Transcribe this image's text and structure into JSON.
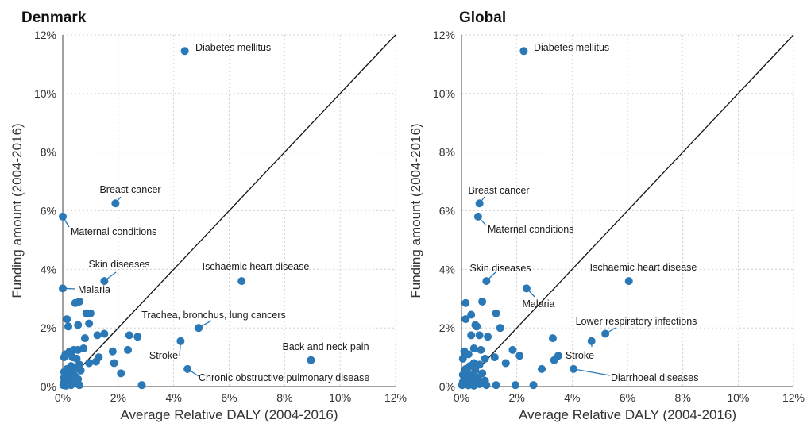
{
  "chart_data": [
    {
      "type": "scatter",
      "title": "Denmark",
      "xlabel": "Average Relative DALY (2004-2016)",
      "ylabel": "Funding amount (2004-2016)",
      "xlim": [
        0,
        12
      ],
      "ylim": [
        0,
        12
      ],
      "x_ticks": [
        "0%",
        "2%",
        "4%",
        "6%",
        "8%",
        "10%",
        "12%"
      ],
      "y_ticks": [
        "0%",
        "2%",
        "4%",
        "6%",
        "8%",
        "10%",
        "12%"
      ],
      "grid": true,
      "reference_line": "y = x",
      "point_color": "#2a78b5",
      "labeled_points": [
        {
          "label": "Diabetes mellitus",
          "x": 4.4,
          "y": 11.45
        },
        {
          "label": "Breast cancer",
          "x": 1.9,
          "y": 6.25
        },
        {
          "label": "Maternal conditions",
          "x": 0.0,
          "y": 5.8
        },
        {
          "label": "Skin diseases",
          "x": 1.5,
          "y": 3.6
        },
        {
          "label": "Malaria",
          "x": 0.0,
          "y": 3.35
        },
        {
          "label": "Ischaemic heart disease",
          "x": 6.45,
          "y": 3.6
        },
        {
          "label": "Trachea, bronchus, lung cancers",
          "x": 4.9,
          "y": 2.0
        },
        {
          "label": "Stroke",
          "x": 4.25,
          "y": 1.55
        },
        {
          "label": "Chronic obstructive pulmonary disease",
          "x": 4.5,
          "y": 0.6
        },
        {
          "label": "Back and neck pain",
          "x": 8.95,
          "y": 0.9
        }
      ],
      "points": [
        {
          "x": 0.45,
          "y": 2.85
        },
        {
          "x": 0.6,
          "y": 2.9
        },
        {
          "x": 0.15,
          "y": 2.3
        },
        {
          "x": 0.85,
          "y": 2.5
        },
        {
          "x": 1.0,
          "y": 2.5
        },
        {
          "x": 0.2,
          "y": 2.05
        },
        {
          "x": 0.55,
          "y": 2.1
        },
        {
          "x": 0.95,
          "y": 2.15
        },
        {
          "x": 1.5,
          "y": 1.8
        },
        {
          "x": 1.25,
          "y": 1.75
        },
        {
          "x": 2.4,
          "y": 1.75
        },
        {
          "x": 2.7,
          "y": 1.7
        },
        {
          "x": 0.8,
          "y": 1.65
        },
        {
          "x": 0.75,
          "y": 1.3
        },
        {
          "x": 0.4,
          "y": 1.25
        },
        {
          "x": 0.55,
          "y": 1.25
        },
        {
          "x": 0.25,
          "y": 1.2
        },
        {
          "x": 1.8,
          "y": 1.2
        },
        {
          "x": 2.35,
          "y": 1.25
        },
        {
          "x": 0.1,
          "y": 1.1
        },
        {
          "x": 0.05,
          "y": 1.0
        },
        {
          "x": 0.35,
          "y": 1.0
        },
        {
          "x": 0.5,
          "y": 0.95
        },
        {
          "x": 1.3,
          "y": 1.0
        },
        {
          "x": 1.2,
          "y": 0.85
        },
        {
          "x": 0.95,
          "y": 0.8
        },
        {
          "x": 1.85,
          "y": 0.8
        },
        {
          "x": 0.6,
          "y": 0.75
        },
        {
          "x": 0.3,
          "y": 0.7
        },
        {
          "x": 0.15,
          "y": 0.6
        },
        {
          "x": 0.45,
          "y": 0.6
        },
        {
          "x": 0.25,
          "y": 0.55
        },
        {
          "x": 0.65,
          "y": 0.55
        },
        {
          "x": 0.05,
          "y": 0.5
        },
        {
          "x": 0.35,
          "y": 0.45
        },
        {
          "x": 2.1,
          "y": 0.45
        },
        {
          "x": 0.1,
          "y": 0.4
        },
        {
          "x": 0.2,
          "y": 0.35
        },
        {
          "x": 0.45,
          "y": 0.35
        },
        {
          "x": 0.05,
          "y": 0.3
        },
        {
          "x": 0.3,
          "y": 0.3
        },
        {
          "x": 0.15,
          "y": 0.25
        },
        {
          "x": 0.55,
          "y": 0.25
        },
        {
          "x": 0.25,
          "y": 0.2
        },
        {
          "x": 0.05,
          "y": 0.15
        },
        {
          "x": 0.35,
          "y": 0.15
        },
        {
          "x": 0.1,
          "y": 0.1
        },
        {
          "x": 0.2,
          "y": 0.08
        },
        {
          "x": 0.45,
          "y": 0.1
        },
        {
          "x": 0.02,
          "y": 0.05
        },
        {
          "x": 0.3,
          "y": 0.05
        },
        {
          "x": 0.12,
          "y": 0.03
        },
        {
          "x": 2.85,
          "y": 0.05
        },
        {
          "x": 0.6,
          "y": 0.05
        }
      ]
    },
    {
      "type": "scatter",
      "title": "Global",
      "xlabel": "Average Relative DALY (2004-2016)",
      "ylabel": "Funding amount (2004-2016)",
      "xlim": [
        0,
        12
      ],
      "ylim": [
        0,
        12
      ],
      "x_ticks": [
        "0%",
        "2%",
        "4%",
        "6%",
        "8%",
        "10%",
        "12%"
      ],
      "y_ticks": [
        "0%",
        "2%",
        "4%",
        "6%",
        "8%",
        "10%",
        "12%"
      ],
      "grid": true,
      "reference_line": "y = x",
      "point_color": "#2a78b5",
      "labeled_points": [
        {
          "label": "Diabetes mellitus",
          "x": 2.25,
          "y": 11.45
        },
        {
          "label": "Breast cancer",
          "x": 0.65,
          "y": 6.25
        },
        {
          "label": "Maternal conditions",
          "x": 0.6,
          "y": 5.8
        },
        {
          "label": "Skin diseases",
          "x": 0.9,
          "y": 3.6
        },
        {
          "label": "Malaria",
          "x": 2.35,
          "y": 3.35
        },
        {
          "label": "Ischaemic heart disease",
          "x": 6.05,
          "y": 3.6
        },
        {
          "label": "Lower respiratory infections",
          "x": 5.2,
          "y": 1.8
        },
        {
          "label": "Stroke",
          "x": 4.7,
          "y": 1.55
        },
        {
          "label": "Diarrhoeal diseases",
          "x": 4.05,
          "y": 0.6
        }
      ],
      "points": [
        {
          "x": 0.15,
          "y": 2.85
        },
        {
          "x": 0.75,
          "y": 2.9
        },
        {
          "x": 0.15,
          "y": 2.3
        },
        {
          "x": 0.35,
          "y": 2.45
        },
        {
          "x": 1.25,
          "y": 2.5
        },
        {
          "x": 0.5,
          "y": 2.1
        },
        {
          "x": 0.55,
          "y": 2.05
        },
        {
          "x": 1.4,
          "y": 2.0
        },
        {
          "x": 0.35,
          "y": 1.75
        },
        {
          "x": 0.65,
          "y": 1.75
        },
        {
          "x": 0.95,
          "y": 1.7
        },
        {
          "x": 3.3,
          "y": 1.65
        },
        {
          "x": 0.45,
          "y": 1.3
        },
        {
          "x": 0.7,
          "y": 1.25
        },
        {
          "x": 1.85,
          "y": 1.25
        },
        {
          "x": 0.1,
          "y": 1.2
        },
        {
          "x": 0.25,
          "y": 1.1
        },
        {
          "x": 2.1,
          "y": 1.05
        },
        {
          "x": 3.5,
          "y": 1.05
        },
        {
          "x": 1.2,
          "y": 1.0
        },
        {
          "x": 0.85,
          "y": 0.95
        },
        {
          "x": 0.05,
          "y": 0.95
        },
        {
          "x": 3.35,
          "y": 0.9
        },
        {
          "x": 0.45,
          "y": 0.8
        },
        {
          "x": 1.6,
          "y": 0.8
        },
        {
          "x": 0.65,
          "y": 0.75
        },
        {
          "x": 0.3,
          "y": 0.7
        },
        {
          "x": 2.9,
          "y": 0.6
        },
        {
          "x": 0.15,
          "y": 0.6
        },
        {
          "x": 0.5,
          "y": 0.55
        },
        {
          "x": 0.75,
          "y": 0.45
        },
        {
          "x": 0.25,
          "y": 0.45
        },
        {
          "x": 0.05,
          "y": 0.4
        },
        {
          "x": 0.4,
          "y": 0.35
        },
        {
          "x": 0.6,
          "y": 0.3
        },
        {
          "x": 0.1,
          "y": 0.3
        },
        {
          "x": 0.3,
          "y": 0.25
        },
        {
          "x": 0.85,
          "y": 0.2
        },
        {
          "x": 0.2,
          "y": 0.2
        },
        {
          "x": 0.5,
          "y": 0.15
        },
        {
          "x": 0.05,
          "y": 0.15
        },
        {
          "x": 0.35,
          "y": 0.1
        },
        {
          "x": 0.15,
          "y": 0.08
        },
        {
          "x": 0.65,
          "y": 0.08
        },
        {
          "x": 0.02,
          "y": 0.05
        },
        {
          "x": 0.25,
          "y": 0.04
        },
        {
          "x": 1.25,
          "y": 0.05
        },
        {
          "x": 1.95,
          "y": 0.05
        },
        {
          "x": 2.6,
          "y": 0.05
        },
        {
          "x": 0.9,
          "y": 0.05
        },
        {
          "x": 0.45,
          "y": 0.03
        }
      ]
    }
  ]
}
